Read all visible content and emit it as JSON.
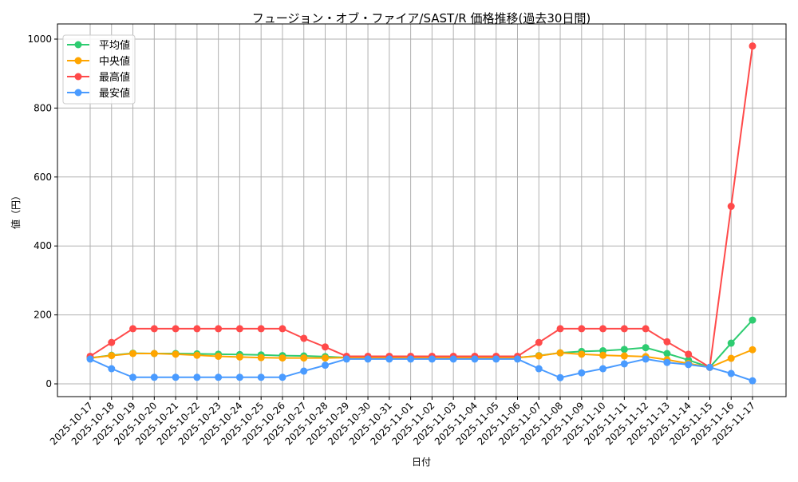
{
  "chart_data": {
    "type": "line",
    "title": "フュージョン・オブ・ファイア/SAST/R 価格推移(過去30日間)",
    "xlabel": "日付",
    "ylabel": "値（円）",
    "ylim": [
      -37,
      1044
    ],
    "yticks": [
      0,
      200,
      400,
      600,
      800,
      1000
    ],
    "grid": true,
    "legend_position": "top-left",
    "x": [
      "2025-10-17",
      "2025-10-18",
      "2025-10-19",
      "2025-10-20",
      "2025-10-21",
      "2025-10-22",
      "2025-10-23",
      "2025-10-24",
      "2025-10-25",
      "2025-10-26",
      "2025-10-27",
      "2025-10-28",
      "2025-10-29",
      "2025-10-30",
      "2025-10-31",
      "2025-11-01",
      "2025-11-02",
      "2025-11-03",
      "2025-11-04",
      "2025-11-05",
      "2025-11-06",
      "2025-11-07",
      "2025-11-08",
      "2025-11-09",
      "2025-11-10",
      "2025-11-11",
      "2025-11-12",
      "2025-11-13",
      "2025-11-14",
      "2025-11-15",
      "2025-11-16",
      "2025-11-17"
    ],
    "series": [
      {
        "name": "平均値",
        "color": "#2ecc71",
        "values": [
          75,
          83,
          89,
          88,
          88,
          87,
          86,
          85,
          84,
          82,
          81,
          79,
          76,
          76,
          76,
          76,
          76,
          76,
          76,
          76,
          76,
          82,
          90,
          94,
          96,
          100,
          105,
          88,
          69,
          48,
          118,
          185
        ]
      },
      {
        "name": "中央値",
        "color": "#ffa500",
        "values": [
          75,
          82,
          88,
          88,
          86,
          83,
          80,
          78,
          76,
          75,
          75,
          75,
          76,
          76,
          76,
          76,
          76,
          76,
          76,
          76,
          76,
          81,
          90,
          86,
          83,
          81,
          79,
          70,
          59,
          48,
          74,
          99
        ]
      },
      {
        "name": "最高値",
        "color": "#ff4a4a",
        "values": [
          80,
          120,
          160,
          160,
          160,
          160,
          160,
          160,
          160,
          160,
          132,
          107,
          80,
          80,
          80,
          80,
          80,
          80,
          80,
          80,
          80,
          120,
          160,
          160,
          160,
          160,
          160,
          122,
          86,
          48,
          515,
          980
        ]
      },
      {
        "name": "最安値",
        "color": "#4a9bff",
        "values": [
          72,
          44,
          19,
          19,
          19,
          19,
          19,
          19,
          19,
          19,
          37,
          54,
          72,
          72,
          72,
          72,
          72,
          72,
          72,
          72,
          72,
          44,
          18,
          32,
          44,
          58,
          72,
          62,
          56,
          48,
          30,
          9
        ]
      }
    ]
  }
}
